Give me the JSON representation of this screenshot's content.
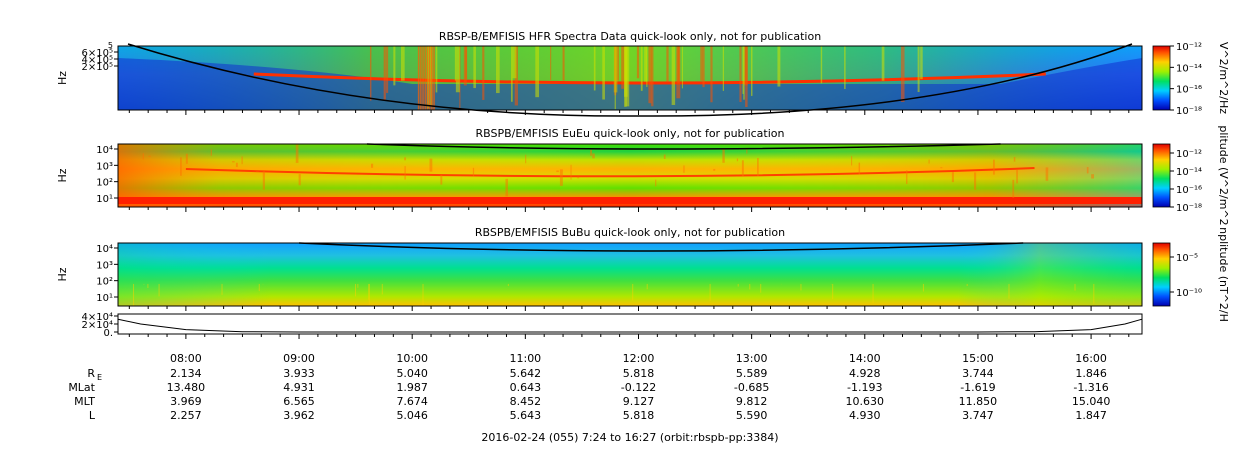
{
  "chart_data": [
    {
      "type": "heatmap",
      "title": "RBSP-B/EMFISIS  HFR Spectra Data quick-look only, not for publication",
      "ylabel": "Hz",
      "ytick_labels": [
        "6×10⁵",
        "4×10⁵",
        "2×10⁵"
      ],
      "ytop_label": "5",
      "colorbar_label": "V^2/m^2/Hz",
      "colorbar_ticks": [
        "10⁻¹²",
        "10⁻¹⁴",
        "10⁻¹⁶",
        "10⁻¹⁸"
      ],
      "colorbar_range": [
        -18,
        -12
      ]
    },
    {
      "type": "heatmap",
      "title": "RBSPB/EMFISIS  EuEu quick-look only, not for publication",
      "ylabel": "Hz",
      "yscale": "log",
      "ytick_labels": [
        "10⁴",
        "10³",
        "10²",
        "10¹"
      ],
      "colorbar_label": "plitude (V^2/m^2",
      "colorbar_ticks": [
        "10⁻¹²",
        "10⁻¹⁴",
        "10⁻¹⁶",
        "10⁻¹⁸"
      ],
      "colorbar_range": [
        -18,
        -11
      ]
    },
    {
      "type": "heatmap",
      "title": "RBSPB/EMFISIS  BuBu quick-look only, not for publication",
      "ylabel": "Hz",
      "yscale": "log",
      "ytick_labels": [
        "10⁴",
        "10³",
        "10²",
        "10¹"
      ],
      "colorbar_label": "nplitude (nT^2/H",
      "colorbar_ticks": [
        "10⁻⁵",
        "10⁻¹⁰"
      ],
      "colorbar_range": [
        -12,
        -3
      ]
    },
    {
      "type": "line",
      "ytick_labels": [
        "4×10⁴",
        "2×10⁴",
        "0."
      ],
      "ylim": [
        0,
        40000
      ],
      "x": [
        7.4,
        7.6,
        8.0,
        8.5,
        9.0,
        10.0,
        12.0,
        14.0,
        15.0,
        15.5,
        16.0,
        16.3,
        16.45
      ],
      "y": [
        32000,
        20000,
        6000,
        800,
        0,
        0,
        0,
        0,
        0,
        800,
        6000,
        20000,
        32000
      ]
    }
  ],
  "time_axis": {
    "labels": [
      "08:00",
      "09:00",
      "10:00",
      "11:00",
      "12:00",
      "13:00",
      "14:00",
      "15:00",
      "16:00"
    ],
    "hours": [
      8,
      9,
      10,
      11,
      12,
      13,
      14,
      15,
      16
    ],
    "start_hour": 7.4,
    "end_hour": 16.45
  },
  "ephemeris": [
    {
      "label": "R",
      "sub": "E",
      "values": [
        "2.134",
        "3.933",
        "5.040",
        "5.642",
        "5.818",
        "5.589",
        "4.928",
        "3.744",
        "1.846"
      ]
    },
    {
      "label": "MLat",
      "sub": "",
      "values": [
        "13.480",
        "4.931",
        "1.987",
        "0.643",
        "-0.122",
        "-0.685",
        "-1.193",
        "-1.619",
        "-1.316"
      ]
    },
    {
      "label": "MLT",
      "sub": "",
      "values": [
        "3.969",
        "6.565",
        "7.674",
        "8.452",
        "9.127",
        "9.812",
        "10.630",
        "11.850",
        "15.040"
      ]
    },
    {
      "label": "L",
      "sub": "",
      "values": [
        "2.257",
        "3.962",
        "5.046",
        "5.643",
        "5.818",
        "5.590",
        "4.930",
        "3.747",
        "1.847"
      ]
    }
  ],
  "footer": "2016-02-24 (055) 7:24 to 16:27 (orbit:rbspb-pp:3384)"
}
